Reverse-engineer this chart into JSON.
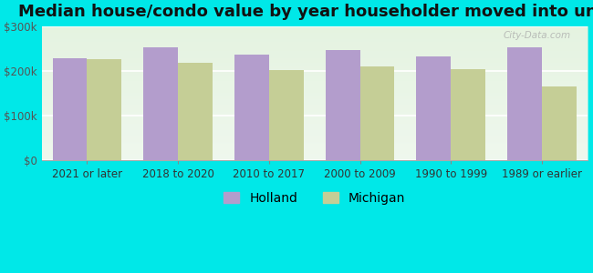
{
  "title": "Median house/condo value by year householder moved into unit",
  "categories": [
    "2021 or later",
    "2018 to 2020",
    "2010 to 2017",
    "2000 to 2009",
    "1990 to 1999",
    "1989 or earlier"
  ],
  "holland_values": [
    228000,
    253000,
    238000,
    247000,
    232000,
    253000
  ],
  "michigan_values": [
    226000,
    218000,
    202000,
    210000,
    205000,
    165000
  ],
  "holland_color": "#b39dcc",
  "michigan_color": "#c5ce96",
  "background_color": "#00e8e8",
  "plot_bg_top": "#e8f5e0",
  "plot_bg_bottom": "#f5fff5",
  "ylim": [
    0,
    300000
  ],
  "yticks": [
    0,
    100000,
    200000,
    300000
  ],
  "ytick_labels": [
    "$0",
    "$100k",
    "$200k",
    "$300k"
  ],
  "legend_labels": [
    "Holland",
    "Michigan"
  ],
  "bar_width": 0.38,
  "title_fontsize": 13,
  "tick_fontsize": 8.5,
  "legend_fontsize": 10,
  "watermark": "City-Data.com"
}
